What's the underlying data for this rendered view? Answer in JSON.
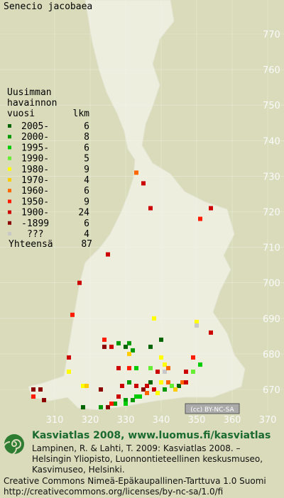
{
  "title": "Senecio jacobaea",
  "legend": {
    "header": [
      "Uusimman",
      "havainnon",
      "vuosi"
    ],
    "count_header": "lkm",
    "items": [
      {
        "label": "2005-",
        "count": 6,
        "color": "#006400"
      },
      {
        "label": "2000-",
        "count": 8,
        "color": "#009a00"
      },
      {
        "label": "1995-",
        "count": 6,
        "color": "#00cc00"
      },
      {
        "label": "1990-",
        "count": 5,
        "color": "#66ee33"
      },
      {
        "label": "1980-",
        "count": 9,
        "color": "#ffff00"
      },
      {
        "label": "1970-",
        "count": 4,
        "color": "#ffcc00"
      },
      {
        "label": "1960-",
        "count": 6,
        "color": "#ff6600"
      },
      {
        "label": "1950-",
        "count": 9,
        "color": "#ff1a00"
      },
      {
        "label": "1900-",
        "count": 24,
        "color": "#cc0000"
      },
      {
        "label": "-1899",
        "count": 6,
        "color": "#8b0000"
      },
      {
        "label": "???",
        "count": 4,
        "color": "#c8c8c8"
      }
    ],
    "total_label": "Yhteensä",
    "total": 87
  },
  "xticks": [
    310,
    320,
    330,
    340,
    350,
    360,
    370
  ],
  "yticks": [
    670,
    680,
    690,
    700,
    710,
    720,
    730,
    740,
    750,
    760,
    770
  ],
  "squares": [
    {
      "x": 333,
      "y": 731,
      "period": 6
    },
    {
      "x": 335,
      "y": 728,
      "period": 8
    },
    {
      "x": 337,
      "y": 721,
      "period": 8
    },
    {
      "x": 354,
      "y": 721,
      "period": 8
    },
    {
      "x": 351,
      "y": 718,
      "period": 7
    },
    {
      "x": 325,
      "y": 708,
      "period": 8
    },
    {
      "x": 317,
      "y": 700,
      "period": 8
    },
    {
      "x": 315,
      "y": 691,
      "period": 7
    },
    {
      "x": 338,
      "y": 690,
      "period": 4
    },
    {
      "x": 350,
      "y": 689,
      "period": 4
    },
    {
      "x": 350,
      "y": 688,
      "period": 10
    },
    {
      "x": 354,
      "y": 686,
      "period": 8
    },
    {
      "x": 340,
      "y": 684,
      "period": 0
    },
    {
      "x": 324,
      "y": 684,
      "period": 7
    },
    {
      "x": 328,
      "y": 683,
      "period": 1
    },
    {
      "x": 331,
      "y": 683,
      "period": 1
    },
    {
      "x": 324,
      "y": 682,
      "period": 9
    },
    {
      "x": 326,
      "y": 682,
      "period": 8
    },
    {
      "x": 330,
      "y": 682,
      "period": 0
    },
    {
      "x": 332,
      "y": 681,
      "period": 1
    },
    {
      "x": 337,
      "y": 682,
      "period": 0
    },
    {
      "x": 331,
      "y": 680,
      "period": 5
    },
    {
      "x": 340,
      "y": 679,
      "period": 4
    },
    {
      "x": 349,
      "y": 679,
      "period": 7
    },
    {
      "x": 351,
      "y": 677,
      "period": 2
    },
    {
      "x": 314,
      "y": 679,
      "period": 8
    },
    {
      "x": 314,
      "y": 675,
      "period": 4
    },
    {
      "x": 341,
      "y": 677,
      "period": 4
    },
    {
      "x": 341,
      "y": 675,
      "period": 10
    },
    {
      "x": 342,
      "y": 676,
      "period": 6
    },
    {
      "x": 328,
      "y": 676,
      "period": 8
    },
    {
      "x": 331,
      "y": 676,
      "period": 7
    },
    {
      "x": 333,
      "y": 676,
      "period": 2
    },
    {
      "x": 337,
      "y": 676,
      "period": 3
    },
    {
      "x": 339,
      "y": 675,
      "period": 8
    },
    {
      "x": 347,
      "y": 675,
      "period": 8
    },
    {
      "x": 349,
      "y": 675,
      "period": 3
    },
    {
      "x": 304,
      "y": 670,
      "period": 9
    },
    {
      "x": 306,
      "y": 670,
      "period": 9
    },
    {
      "x": 304,
      "y": 668,
      "period": 7
    },
    {
      "x": 307,
      "y": 667,
      "period": 9
    },
    {
      "x": 318,
      "y": 671,
      "period": 4
    },
    {
      "x": 319,
      "y": 671,
      "period": 5
    },
    {
      "x": 323,
      "y": 670,
      "period": 9
    },
    {
      "x": 329,
      "y": 671,
      "period": 8
    },
    {
      "x": 331,
      "y": 672,
      "period": 1
    },
    {
      "x": 333,
      "y": 671,
      "period": 8
    },
    {
      "x": 337,
      "y": 672,
      "period": 0
    },
    {
      "x": 340,
      "y": 672,
      "period": 4
    },
    {
      "x": 342,
      "y": 672,
      "period": 6
    },
    {
      "x": 345,
      "y": 671,
      "period": 0
    },
    {
      "x": 346,
      "y": 672,
      "period": 6
    },
    {
      "x": 347,
      "y": 672,
      "period": 8
    },
    {
      "x": 335,
      "y": 670,
      "period": 9
    },
    {
      "x": 336,
      "y": 669,
      "period": 6
    },
    {
      "x": 338,
      "y": 670,
      "period": 8
    },
    {
      "x": 339,
      "y": 669,
      "period": 4
    },
    {
      "x": 341,
      "y": 670,
      "period": 1
    },
    {
      "x": 344,
      "y": 670,
      "period": 5
    },
    {
      "x": 333,
      "y": 668,
      "period": 2
    },
    {
      "x": 330,
      "y": 667,
      "period": 1
    },
    {
      "x": 330,
      "y": 666,
      "period": 2
    },
    {
      "x": 327,
      "y": 666,
      "period": 1
    },
    {
      "x": 328,
      "y": 668,
      "period": 8
    },
    {
      "x": 323,
      "y": 665,
      "period": 1
    },
    {
      "x": 325,
      "y": 665,
      "period": 9
    },
    {
      "x": 326,
      "y": 666,
      "period": 7
    },
    {
      "x": 318,
      "y": 665,
      "period": 0
    },
    {
      "x": 332,
      "y": 667,
      "period": 1
    },
    {
      "x": 334,
      "y": 668,
      "period": 2
    },
    {
      "x": 336,
      "y": 671,
      "period": 8
    },
    {
      "x": 343,
      "y": 671,
      "period": 3
    }
  ],
  "badge": "(cc) BY-NC-SA",
  "footer": {
    "brand": "Kasviatlas 2008, www.luomus.fi/kasviatlas",
    "citation": [
      "Lampinen, R. & Lahti, T. 2009: Kasviatlas 2008. –",
      "Helsingin Yliopisto, Luonnontieteellinen keskusmuseo,",
      "Kasvimuseo, Helsinki."
    ],
    "license": [
      "Creative Commons Nimeä-Epäkaupallinen-Tarttuva 1.0 Suomi",
      "http://creativecommons.org/licenses/by-nc-sa/1.0/fi"
    ]
  }
}
